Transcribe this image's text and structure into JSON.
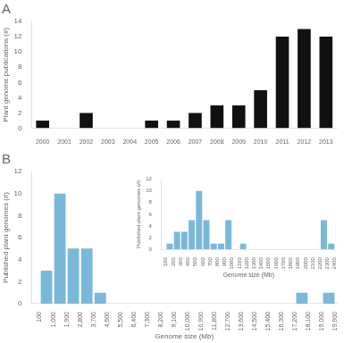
{
  "chart_data": [
    {
      "type": "bar",
      "title": "A",
      "categories": [
        "2000",
        "2001",
        "2002",
        "2003",
        "2004",
        "2005",
        "2006",
        "2007",
        "2008",
        "2009",
        "2010",
        "2011",
        "2012",
        "2013"
      ],
      "values": [
        1,
        0,
        2,
        0,
        0,
        1,
        1,
        2,
        3,
        3,
        5,
        12,
        13,
        12
      ],
      "color": "#111111",
      "ylabel": "Plant genome publications (#)",
      "ylim": [
        0,
        14
      ],
      "yticks": [
        0,
        2,
        4,
        6,
        8,
        10,
        12,
        14
      ],
      "grid": false
    },
    {
      "type": "histogram",
      "title": "B",
      "bins": [
        100,
        1000,
        1900,
        2800,
        3700,
        4600,
        5500,
        6400,
        7300,
        8200,
        9100,
        10000,
        10900,
        11800,
        12700,
        13600,
        14500,
        15400,
        16300,
        17200,
        18100,
        19000,
        19900
      ],
      "values": [
        3,
        10,
        5,
        5,
        1,
        0,
        0,
        0,
        0,
        0,
        0,
        0,
        0,
        0,
        0,
        0,
        0,
        0,
        0,
        1,
        0,
        1
      ],
      "color": "#7ab8d9",
      "xlabel": "Genome size (Mb)",
      "ylabel": "Published plant genomes (#)",
      "xlim": [
        -440,
        19990
      ],
      "xticks": [
        100,
        {
          "value": 1000,
          "label": "1,000"
        },
        {
          "value": 1900,
          "label": "1,900"
        },
        {
          "value": 2800,
          "label": "2,800"
        },
        {
          "value": 3700,
          "label": "3,700"
        },
        {
          "value": 4600,
          "label": "4,600"
        },
        {
          "value": 5500,
          "label": "5,500"
        },
        {
          "value": 6400,
          "label": "6,400"
        },
        {
          "value": 7300,
          "label": "7,300"
        },
        {
          "value": 8200,
          "label": "8,200"
        },
        {
          "value": 9100,
          "label": "9,100"
        },
        {
          "value": 10000,
          "label": "10,000"
        },
        {
          "value": 10900,
          "label": "10,900"
        },
        {
          "value": 11800,
          "label": "11,800"
        },
        {
          "value": 12700,
          "label": "12,700"
        },
        {
          "value": 13600,
          "label": "13,600"
        },
        {
          "value": 14500,
          "label": "14,500"
        },
        {
          "value": 15400,
          "label": "15,400"
        },
        {
          "value": 16300,
          "label": "16,300"
        },
        {
          "value": 17200,
          "label": "17,200"
        },
        {
          "value": 18100,
          "label": "18,100"
        },
        {
          "value": 19000,
          "label": "19,000"
        },
        {
          "value": 19900,
          "label": "19,900"
        }
      ],
      "ylim": [
        0,
        12
      ],
      "yticks": [
        0,
        2,
        4,
        6,
        8,
        10,
        12
      ],
      "grid": false
    },
    {
      "type": "histogram",
      "bins": [
        100,
        200,
        300,
        400,
        500,
        600,
        700,
        800,
        900,
        1000,
        1100,
        1200,
        1300,
        1400,
        1500,
        1600,
        1700,
        1800,
        1900,
        2000,
        2100,
        2200,
        2300,
        2400
      ],
      "values": [
        1,
        3,
        3,
        5,
        10,
        5,
        1,
        1,
        5,
        0,
        1,
        0,
        0,
        0,
        0,
        0,
        0,
        0,
        0,
        0,
        0,
        5,
        1
      ],
      "color": "#7ab8d9",
      "xlabel": "Genome size (Mb)",
      "ylabel": "Published plant genomes (#)",
      "xlim": [
        40,
        2410
      ],
      "xticks": [
        100,
        200,
        300,
        400,
        500,
        600,
        700,
        800,
        900,
        1000,
        1100,
        1200,
        1300,
        1400,
        1500,
        1600,
        1700,
        1800,
        1900,
        2000,
        2100,
        2200,
        2300,
        2400
      ],
      "ylim": [
        0,
        12
      ],
      "yticks": [
        0,
        2,
        4,
        6,
        8,
        10,
        12
      ],
      "grid": false
    }
  ]
}
